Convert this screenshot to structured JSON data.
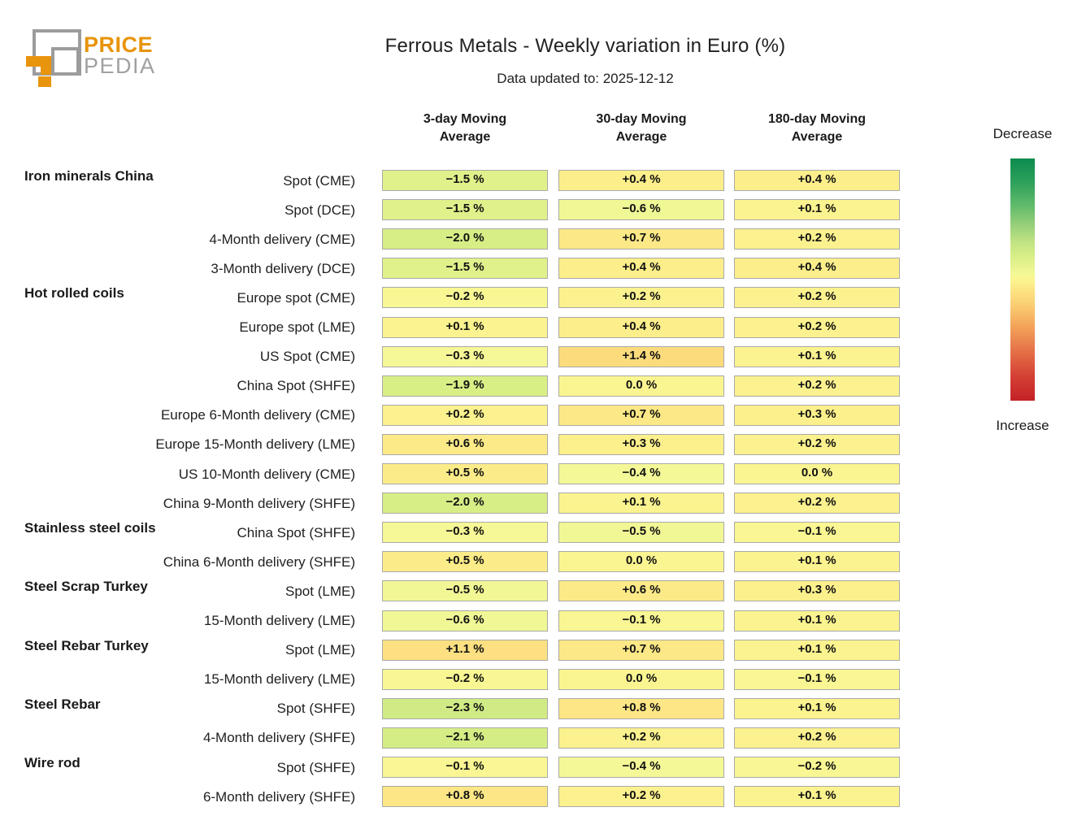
{
  "logo": {
    "brand_top": "PRICE",
    "brand_bottom": "PEDIA",
    "brand_orange": "#e8940c",
    "brand_gray": "#9e9e9e"
  },
  "chart_data": {
    "type": "heatmap",
    "title": "Ferrous Metals - Weekly variation in Euro (%)",
    "subtitle": "Data updated to: 2025-12-12",
    "value_unit": "%",
    "columns": [
      "3-day Moving Average",
      "30-day Moving Average",
      "180-day Moving Average"
    ],
    "legend": {
      "top": "Decrease",
      "bottom": "Increase",
      "position": "right"
    },
    "rows": [
      {
        "group": "Iron minerals China",
        "label": "Spot (CME)",
        "values": [
          -1.5,
          0.4,
          0.4
        ]
      },
      {
        "group": "",
        "label": "Spot (DCE)",
        "values": [
          -1.5,
          -0.6,
          0.1
        ]
      },
      {
        "group": "",
        "label": "4-Month delivery (CME)",
        "values": [
          -2.0,
          0.7,
          0.2
        ]
      },
      {
        "group": "",
        "label": "3-Month delivery (DCE)",
        "values": [
          -1.5,
          0.4,
          0.4
        ]
      },
      {
        "group": "Hot rolled coils",
        "label": "Europe spot (CME)",
        "values": [
          -0.2,
          0.2,
          0.2
        ]
      },
      {
        "group": "",
        "label": "Europe spot (LME)",
        "values": [
          0.1,
          0.4,
          0.2
        ]
      },
      {
        "group": "",
        "label": "US Spot (CME)",
        "values": [
          -0.3,
          1.4,
          0.1
        ]
      },
      {
        "group": "",
        "label": "China Spot (SHFE)",
        "values": [
          -1.9,
          0.0,
          0.2
        ]
      },
      {
        "group": "",
        "label": "Europe 6-Month delivery (CME)",
        "values": [
          0.2,
          0.7,
          0.3
        ]
      },
      {
        "group": "",
        "label": "Europe 15-Month delivery (LME)",
        "values": [
          0.6,
          0.3,
          0.2
        ]
      },
      {
        "group": "",
        "label": "US 10-Month delivery (CME)",
        "values": [
          0.5,
          -0.4,
          0.0
        ]
      },
      {
        "group": "",
        "label": "China 9-Month delivery (SHFE)",
        "values": [
          -2.0,
          0.1,
          0.2
        ]
      },
      {
        "group": "Stainless steel coils",
        "label": "China Spot (SHFE)",
        "values": [
          -0.3,
          -0.5,
          -0.1
        ]
      },
      {
        "group": "",
        "label": "China 6-Month delivery (SHFE)",
        "values": [
          0.5,
          0.0,
          0.1
        ]
      },
      {
        "group": "Steel Scrap Turkey",
        "label": "Spot (LME)",
        "values": [
          -0.5,
          0.6,
          0.3
        ]
      },
      {
        "group": "",
        "label": "15-Month delivery (LME)",
        "values": [
          -0.6,
          -0.1,
          0.1
        ]
      },
      {
        "group": "Steel Rebar Turkey",
        "label": "Spot (LME)",
        "values": [
          1.1,
          0.7,
          0.1
        ]
      },
      {
        "group": "",
        "label": "15-Month delivery (LME)",
        "values": [
          -0.2,
          0.0,
          -0.1
        ]
      },
      {
        "group": "Steel Rebar",
        "label": "Spot (SHFE)",
        "values": [
          -2.3,
          0.8,
          0.1
        ]
      },
      {
        "group": "",
        "label": "4-Month delivery (SHFE)",
        "values": [
          -2.1,
          0.2,
          0.2
        ]
      },
      {
        "group": "Wire rod",
        "label": "Spot (SHFE)",
        "values": [
          -0.1,
          -0.4,
          -0.2
        ]
      },
      {
        "group": "",
        "label": "6-Month delivery (SHFE)",
        "values": [
          0.8,
          0.2,
          0.1
        ]
      }
    ],
    "colormap": {
      "meaning": "green = decrease, red = increase",
      "domain": [
        -10,
        10
      ],
      "stops": [
        {
          "v": -10,
          "color": "#0c8b4e"
        },
        {
          "v": -8,
          "color": "#2ea15b"
        },
        {
          "v": -6,
          "color": "#64bc6c"
        },
        {
          "v": -4.5,
          "color": "#97d079"
        },
        {
          "v": -3,
          "color": "#c3e484"
        },
        {
          "v": -2,
          "color": "#d6ee85"
        },
        {
          "v": -1,
          "color": "#e9f490"
        },
        {
          "v": -0.4,
          "color": "#f4f897"
        },
        {
          "v": 0,
          "color": "#fbf591"
        },
        {
          "v": 0.5,
          "color": "#fcec89"
        },
        {
          "v": 1,
          "color": "#fce282"
        },
        {
          "v": 1.5,
          "color": "#fbd97b"
        },
        {
          "v": 2.5,
          "color": "#f9c46c"
        },
        {
          "v": 4,
          "color": "#f3a058"
        },
        {
          "v": 6,
          "color": "#e46f46"
        },
        {
          "v": 8,
          "color": "#d44034"
        },
        {
          "v": 10,
          "color": "#c42127"
        }
      ]
    }
  }
}
